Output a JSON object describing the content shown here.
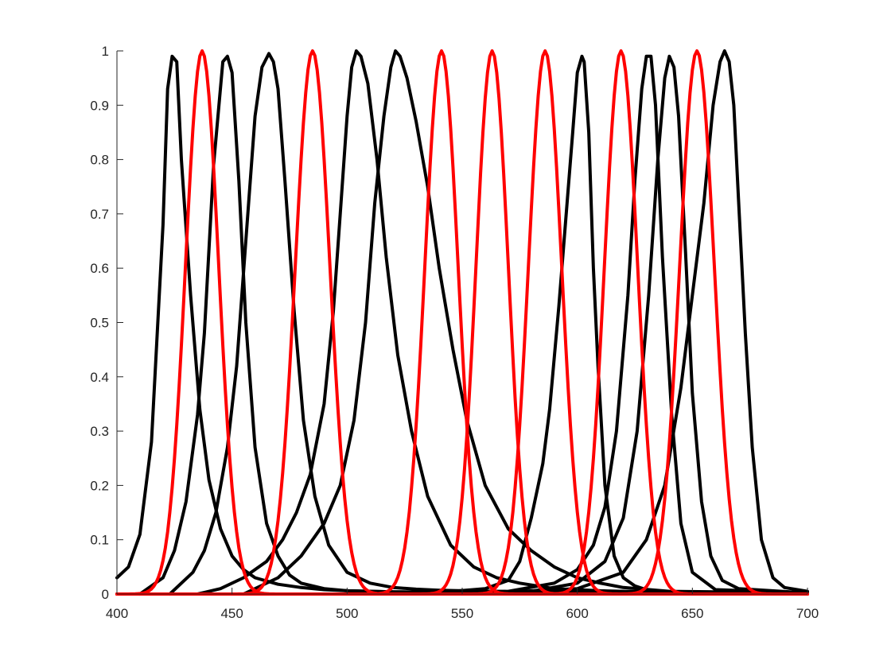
{
  "chart_data": {
    "type": "line",
    "title": "",
    "xlabel": "",
    "ylabel": "",
    "xlim": [
      400,
      700
    ],
    "ylim": [
      0,
      1
    ],
    "x_ticks": [
      400,
      450,
      500,
      550,
      600,
      650,
      700
    ],
    "y_ticks": [
      0,
      0.1,
      0.2,
      0.3,
      0.4,
      0.5,
      0.6,
      0.7,
      0.8,
      0.9,
      1
    ],
    "grid": false,
    "legend": "none",
    "colors": {
      "black": "#000000",
      "red": "#ff0000",
      "axis": "#262626"
    },
    "series": [
      {
        "color": "black",
        "x": [
          400,
          405,
          410,
          415,
          420,
          422,
          424,
          426,
          428,
          432,
          436,
          440,
          445,
          450,
          455,
          460,
          470,
          480,
          490,
          500,
          520,
          550,
          580,
          600,
          620,
          640,
          660,
          680,
          700
        ],
        "y": [
          0.03,
          0.05,
          0.11,
          0.28,
          0.68,
          0.93,
          0.99,
          0.98,
          0.8,
          0.55,
          0.34,
          0.21,
          0.12,
          0.07,
          0.045,
          0.03,
          0.018,
          0.012,
          0.008,
          0.006,
          0.004,
          0.003,
          0.002,
          0.002,
          0.0015,
          0.0012,
          0.001,
          0.001,
          0.001
        ]
      },
      {
        "color": "black",
        "x": [
          410,
          420,
          425,
          430,
          435,
          438,
          442,
          446,
          448,
          450,
          453,
          456,
          460,
          465,
          470,
          475,
          480,
          490,
          500,
          520,
          550,
          580,
          600,
          640,
          700
        ],
        "y": [
          0.0,
          0.03,
          0.08,
          0.17,
          0.33,
          0.48,
          0.79,
          0.98,
          0.99,
          0.96,
          0.76,
          0.5,
          0.27,
          0.13,
          0.07,
          0.035,
          0.02,
          0.01,
          0.006,
          0.004,
          0.003,
          0.002,
          0.002,
          0.001,
          0.001
        ]
      },
      {
        "color": "black",
        "x": [
          423,
          428,
          433,
          438,
          443,
          448,
          452,
          456,
          460,
          463,
          466,
          468,
          470,
          473,
          477,
          481,
          486,
          492,
          500,
          510,
          520,
          530,
          540,
          550,
          580,
          620,
          700
        ],
        "y": [
          0.0,
          0.02,
          0.04,
          0.08,
          0.15,
          0.27,
          0.42,
          0.65,
          0.88,
          0.97,
          0.995,
          0.98,
          0.93,
          0.76,
          0.52,
          0.32,
          0.18,
          0.09,
          0.04,
          0.02,
          0.012,
          0.009,
          0.007,
          0.006,
          0.004,
          0.003,
          0.002
        ]
      },
      {
        "color": "black",
        "x": [
          435,
          445,
          455,
          465,
          472,
          478,
          484,
          490,
          494,
          497,
          500,
          502,
          504,
          506,
          509,
          513,
          517,
          522,
          528,
          535,
          545,
          555,
          565,
          575,
          590,
          610,
          630,
          700
        ],
        "y": [
          0.0,
          0.01,
          0.03,
          0.06,
          0.1,
          0.15,
          0.22,
          0.35,
          0.52,
          0.7,
          0.88,
          0.97,
          1.0,
          0.99,
          0.94,
          0.8,
          0.62,
          0.44,
          0.3,
          0.18,
          0.09,
          0.05,
          0.03,
          0.02,
          0.01,
          0.006,
          0.004,
          0.002
        ]
      },
      {
        "color": "black",
        "x": [
          455,
          470,
          480,
          490,
          497,
          503,
          508,
          512,
          516,
          519,
          521,
          523,
          526,
          530,
          535,
          540,
          546,
          552,
          560,
          570,
          580,
          590,
          600,
          610,
          620,
          640,
          700
        ],
        "y": [
          0.0,
          0.03,
          0.07,
          0.13,
          0.2,
          0.32,
          0.5,
          0.72,
          0.88,
          0.97,
          1.0,
          0.99,
          0.95,
          0.87,
          0.75,
          0.6,
          0.45,
          0.32,
          0.2,
          0.12,
          0.08,
          0.05,
          0.03,
          0.02,
          0.012,
          0.005,
          0.002
        ]
      },
      {
        "color": "black",
        "x": [
          500,
          540,
          560,
          570,
          575,
          580,
          585,
          588,
          592,
          595,
          598,
          600,
          602,
          603,
          605,
          607,
          609,
          612,
          616,
          620,
          625,
          630,
          640,
          700
        ],
        "y": [
          0.0,
          0.003,
          0.01,
          0.025,
          0.06,
          0.14,
          0.24,
          0.34,
          0.53,
          0.69,
          0.85,
          0.96,
          0.99,
          0.98,
          0.85,
          0.6,
          0.42,
          0.2,
          0.07,
          0.03,
          0.015,
          0.008,
          0.003,
          0.001
        ]
      },
      {
        "color": "black",
        "x": [
          530,
          570,
          590,
          600,
          607,
          612,
          617,
          622,
          625,
          628,
          630,
          632,
          634,
          637,
          641,
          645,
          650,
          660,
          700
        ],
        "y": [
          0.0,
          0.005,
          0.02,
          0.045,
          0.09,
          0.16,
          0.3,
          0.55,
          0.76,
          0.93,
          0.99,
          0.99,
          0.9,
          0.62,
          0.33,
          0.13,
          0.04,
          0.008,
          0.002
        ]
      },
      {
        "color": "black",
        "x": [
          540,
          580,
          600,
          612,
          620,
          626,
          631,
          635,
          638,
          640,
          642,
          644,
          647,
          650,
          654,
          658,
          663,
          670,
          700
        ],
        "y": [
          0.0,
          0.005,
          0.02,
          0.06,
          0.14,
          0.3,
          0.55,
          0.8,
          0.95,
          0.99,
          0.97,
          0.88,
          0.63,
          0.37,
          0.17,
          0.07,
          0.025,
          0.01,
          0.002
        ]
      },
      {
        "color": "black",
        "x": [
          550,
          600,
          620,
          630,
          638,
          645,
          650,
          655,
          659,
          662,
          664,
          666,
          668,
          670,
          673,
          676,
          680,
          685,
          690,
          700
        ],
        "y": [
          0.0,
          0.01,
          0.04,
          0.1,
          0.2,
          0.38,
          0.55,
          0.72,
          0.9,
          0.98,
          1.0,
          0.98,
          0.9,
          0.73,
          0.48,
          0.27,
          0.1,
          0.03,
          0.012,
          0.005
        ]
      },
      {
        "color": "red",
        "peak": 437,
        "sigma": 7.2
      },
      {
        "color": "red",
        "peak": 485,
        "sigma": 7.5
      },
      {
        "color": "red",
        "peak": 541,
        "sigma": 7.2
      },
      {
        "color": "red",
        "peak": 563,
        "sigma": 7.0
      },
      {
        "color": "red",
        "peak": 586,
        "sigma": 7.2
      },
      {
        "color": "red",
        "peak": 619,
        "sigma": 7.2
      },
      {
        "color": "red",
        "peak": 652,
        "sigma": 7.5
      }
    ]
  }
}
